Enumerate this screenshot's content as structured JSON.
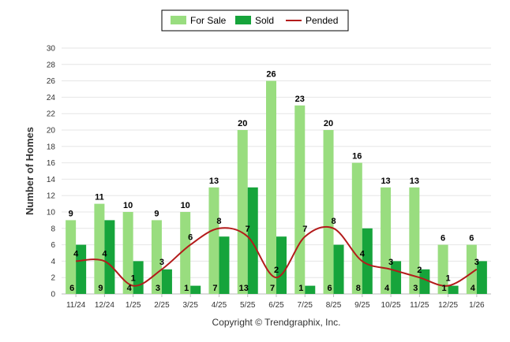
{
  "chart_data": {
    "type": "bar",
    "ylabel": "Number of Homes",
    "xlabel": "",
    "ylim": [
      0,
      30
    ],
    "yticks": [
      0,
      2,
      4,
      6,
      8,
      10,
      12,
      14,
      16,
      18,
      20,
      22,
      24,
      26,
      28,
      30
    ],
    "categories": [
      "11/24",
      "12/24",
      "1/25",
      "2/25",
      "3/25",
      "4/25",
      "5/25",
      "6/25",
      "7/25",
      "8/25",
      "9/25",
      "10/25",
      "11/25",
      "12/25",
      "1/26"
    ],
    "series": [
      {
        "name": "For Sale",
        "kind": "bar",
        "color": "#99dd7f",
        "values": [
          9,
          11,
          10,
          9,
          10,
          13,
          20,
          26,
          23,
          20,
          16,
          13,
          13,
          6,
          6
        ]
      },
      {
        "name": "Sold",
        "kind": "bar",
        "color": "#16a43b",
        "values": [
          6,
          9,
          4,
          3,
          1,
          7,
          13,
          7,
          1,
          6,
          8,
          4,
          3,
          1,
          4
        ]
      },
      {
        "name": "Pended",
        "kind": "line",
        "color": "#b31b1b",
        "values": [
          4,
          4,
          1,
          3,
          6,
          8,
          7,
          2,
          7,
          8,
          4,
          3,
          2,
          1,
          3
        ]
      }
    ],
    "legend_position": "top-center",
    "grid": true
  },
  "footer": {
    "credit": "Copyright © Trendgraphix, Inc."
  }
}
